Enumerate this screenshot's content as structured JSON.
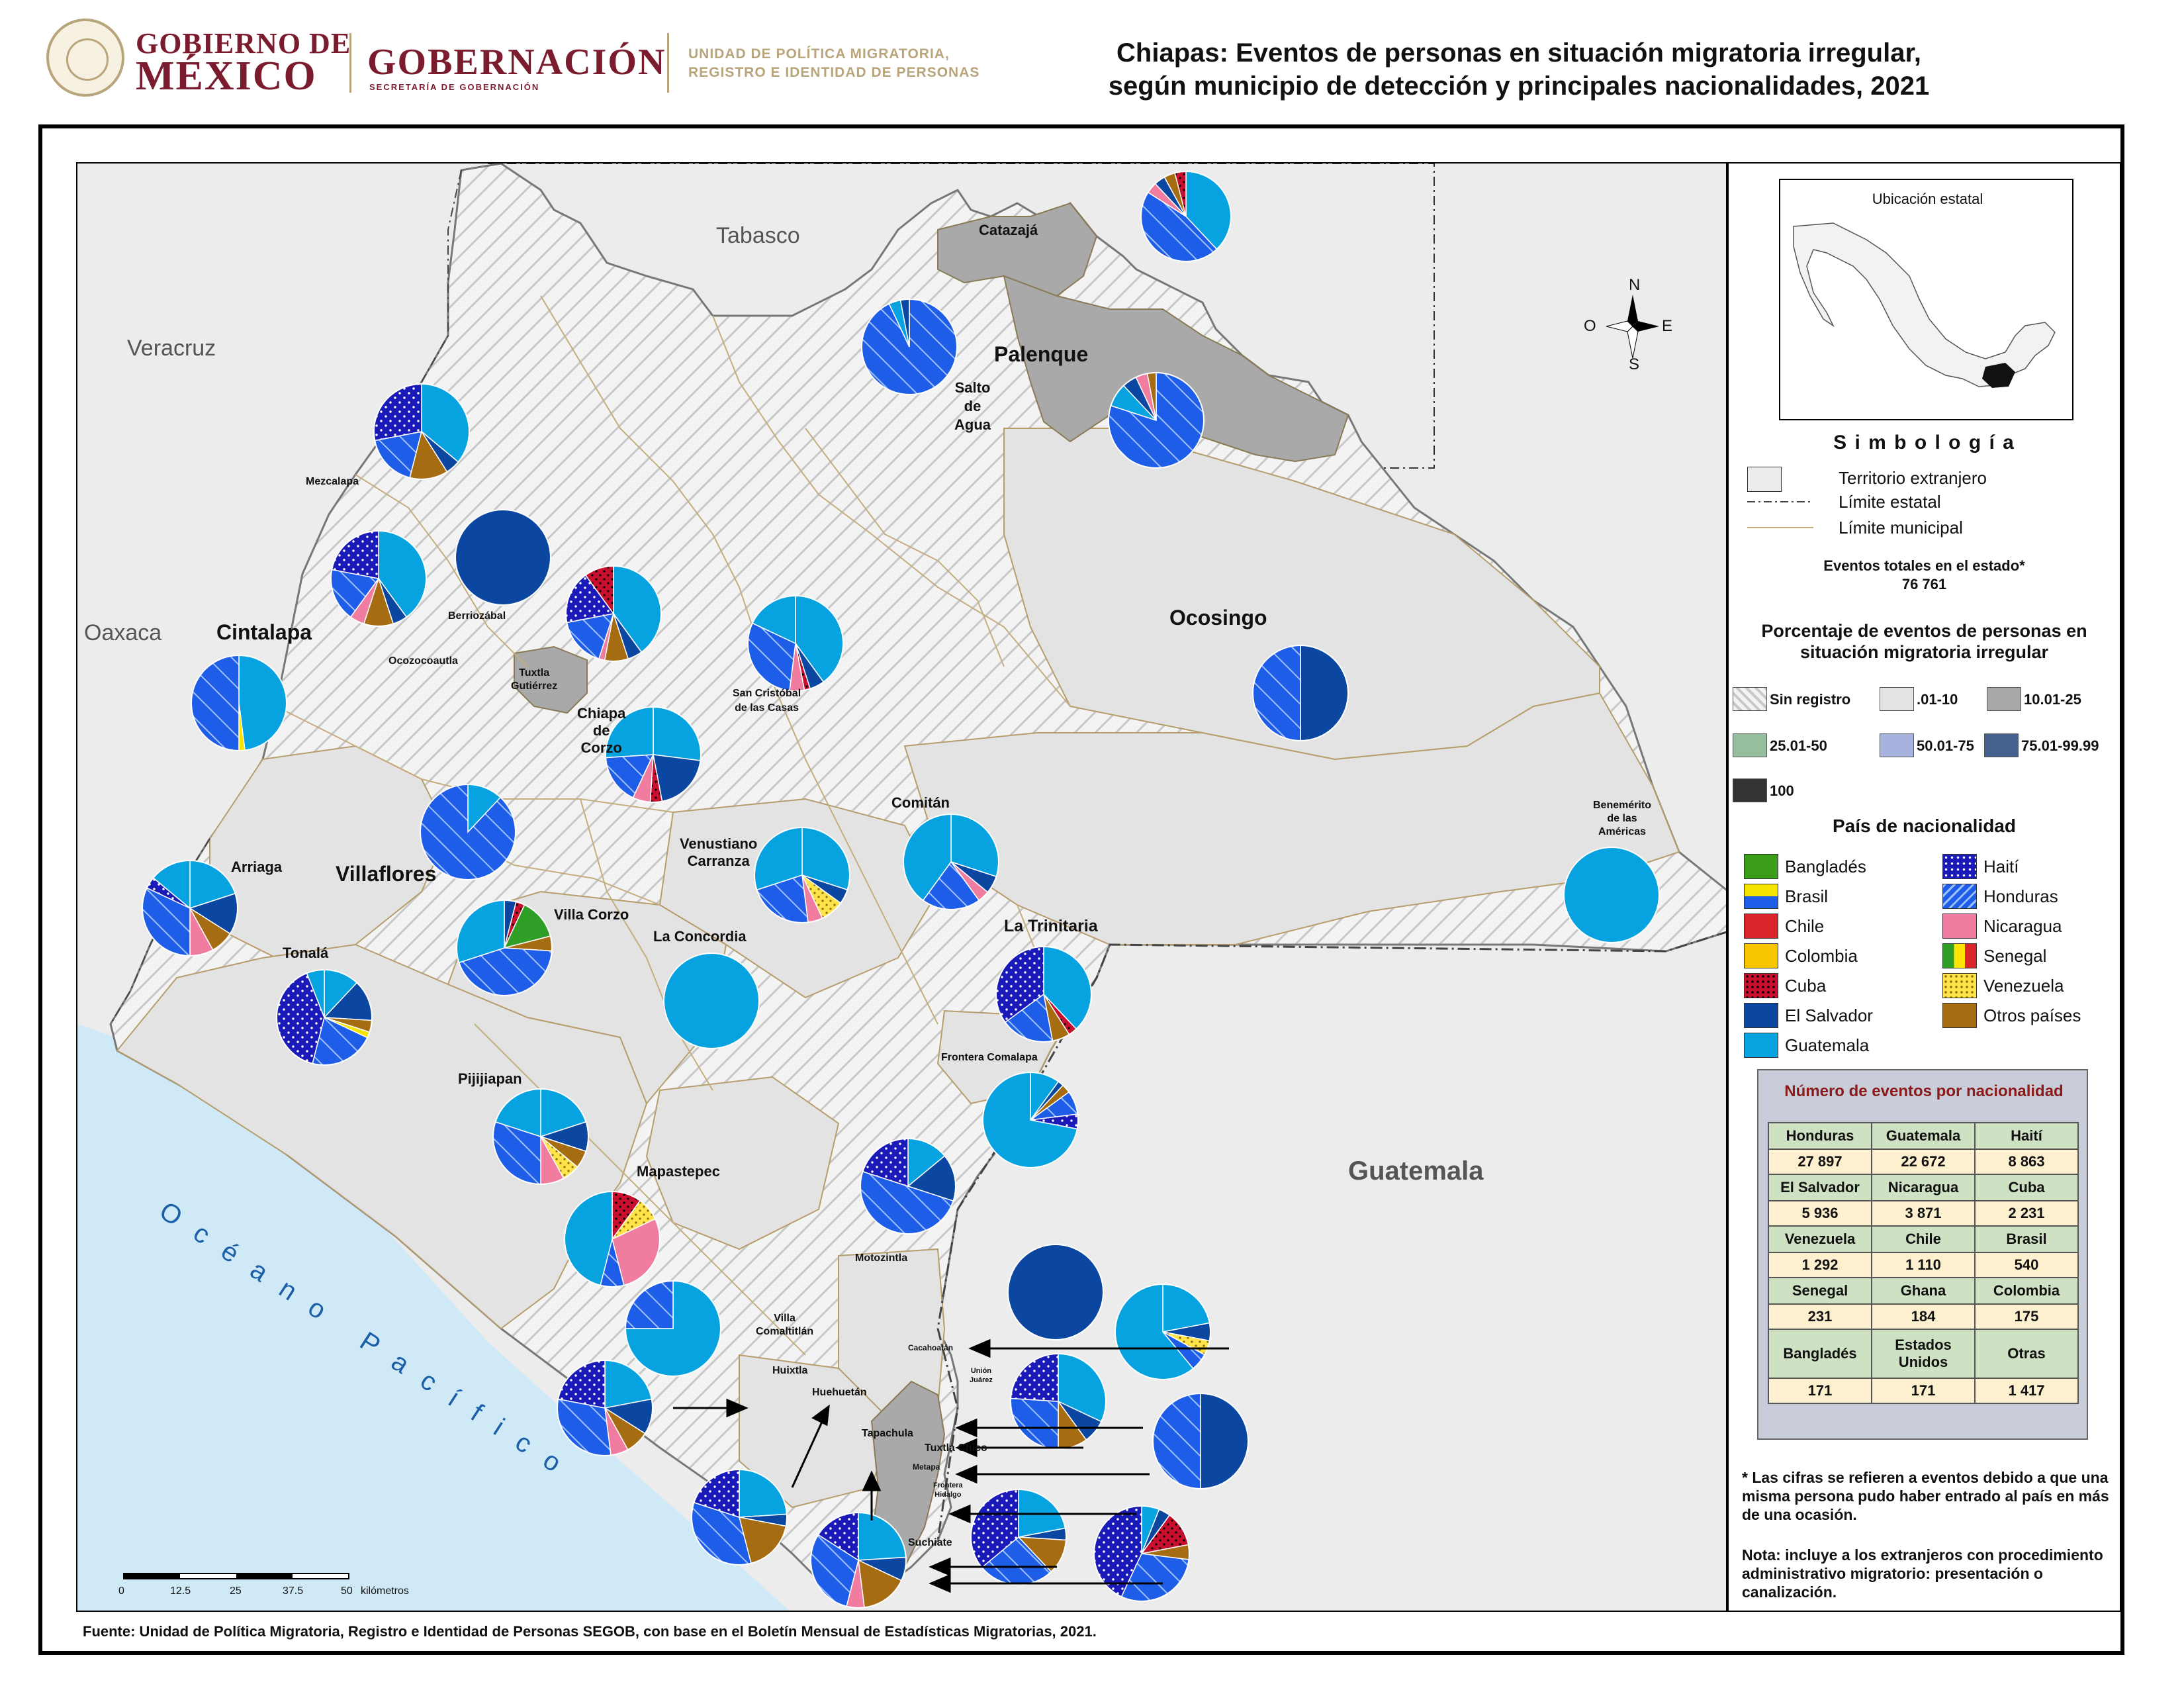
{
  "header": {
    "gob_line1": "GOBIERNO DE",
    "gob_line2": "MÉXICO",
    "gobernacion": "GOBERNACIÓN",
    "secretaria": "SECRETARÍA DE GOBERNACIÓN",
    "unidad_line1": "UNIDAD DE POLÍTICA MIGRATORIA,",
    "unidad_line2": "REGISTRO E IDENTIDAD DE PERSONAS",
    "title_line1": "Chiapas: Eventos de personas en situación migratoria irregular,",
    "title_line2": "según municipio de detección y principales nacionalidades, 2021"
  },
  "map": {
    "regions": {
      "tabasco": "Tabasco",
      "veracruz": "Veracruz",
      "oaxaca": "Oaxaca",
      "guatemala": "Guatemala",
      "ocean": "Océano Pacífico"
    },
    "municipalities": {
      "catazaja": "Catazajá",
      "palenque": "Palenque",
      "salto_line1": "Salto",
      "salto_line2": "de",
      "salto_line3": "Agua",
      "mezcalapa": "Mezcalapa",
      "berriozabal": "Berriozábal",
      "ocozocoautla": "Ocozocoautla",
      "cintalapa": "Cintalapa",
      "tuxtla_line1": "Tuxtla",
      "tuxtla_line2": "Gutiérrez",
      "chiapa_line1": "Chiapa",
      "chiapa_line2": "de",
      "chiapa_line3": "Corzo",
      "san_cristobal_line1": "San Cristóbal",
      "san_cristobal_line2": "de las Casas",
      "ocosingo": "Ocosingo",
      "comitan": "Comitán",
      "venustiano_line1": "Venustiano",
      "venustiano_line2": "Carranza",
      "benemerito_line1": "Benemérito",
      "benemerito_line2": "de las",
      "benemerito_line3": "Américas",
      "arriaga": "Arriaga",
      "villaflores": "Villaflores",
      "villa_corzo": "Villa Corzo",
      "la_concordia": "La Concordia",
      "la_trinitaria": "La Trinitaria",
      "tonala": "Tonalá",
      "pijijiapan": "Pijijiapan",
      "frontera_comalapa": "Frontera Comalapa",
      "mapastepec": "Mapastepec",
      "motozintla": "Motozintla",
      "villa_comaltitlan_line1": "Villa",
      "villa_comaltitlan_line2": "Comaltitlán",
      "huixtla": "Huixtla",
      "huehuetan": "Huehuetán",
      "cacahoatan": "Cacahoatán",
      "union_juarez_line1": "Unión",
      "union_juarez_line2": "Juárez",
      "tapachula": "Tapachula",
      "tuxtla_chico": "Tuxtla Chico",
      "metapa": "Metapa",
      "frontera_hidalgo_line1": "Frontera",
      "frontera_hidalgo_line2": "Hidalgo",
      "suchiate": "Suchiate"
    },
    "compass": {
      "n": "N",
      "s": "S",
      "e": "E",
      "o": "O"
    },
    "scale": {
      "ticks": [
        "0",
        "12.5",
        "25",
        "37.5",
        "50"
      ],
      "unit": "kilómetros"
    },
    "pie_slices": {
      "catazaja": [
        [
          "Guatemala",
          0.38
        ],
        [
          "Honduras",
          0.46
        ],
        [
          "Nicaragua",
          0.04
        ],
        [
          "El Salvador",
          0.04
        ],
        [
          "Otros países",
          0.04
        ],
        [
          "Cuba",
          0.04
        ]
      ],
      "salto": [
        [
          "Honduras",
          0.93
        ],
        [
          "Guatemala",
          0.04
        ],
        [
          "El Salvador",
          0.03
        ]
      ],
      "palenque": [
        [
          "Honduras",
          0.8
        ],
        [
          "Guatemala",
          0.08
        ],
        [
          "El Salvador",
          0.05
        ],
        [
          "Nicaragua",
          0.04
        ],
        [
          "Otros países",
          0.03
        ]
      ],
      "mezcalapa": [
        [
          "Guatemala",
          0.36
        ],
        [
          "El Salvador",
          0.05
        ],
        [
          "Otros países",
          0.13
        ],
        [
          "Honduras",
          0.18
        ],
        [
          "Haití",
          0.28
        ]
      ],
      "berriozabal": [
        [
          "El Salvador",
          1.0
        ]
      ],
      "cintalapa_mun": [
        [
          "Guatemala",
          0.4
        ],
        [
          "El Salvador",
          0.05
        ],
        [
          "Otros países",
          0.1
        ],
        [
          "Nicaragua",
          0.05
        ],
        [
          "Honduras",
          0.18
        ],
        [
          "Haití",
          0.22
        ]
      ],
      "ocozocoautla": [
        [
          "Guatemala",
          0.4
        ],
        [
          "El Salvador",
          0.05
        ],
        [
          "Otros países",
          0.08
        ],
        [
          "Nicaragua",
          0.02
        ],
        [
          "Honduras",
          0.17
        ],
        [
          "Haití",
          0.18
        ],
        [
          "Cuba",
          0.1
        ]
      ],
      "cintalapa": [
        [
          "Guatemala",
          0.48
        ],
        [
          "Brasil",
          0.02
        ],
        [
          "Honduras",
          0.5
        ]
      ],
      "san_cristobal": [
        [
          "Guatemala",
          0.4
        ],
        [
          "El Salvador",
          0.05
        ],
        [
          "Cuba",
          0.02
        ],
        [
          "Nicaragua",
          0.05
        ],
        [
          "Honduras",
          0.3
        ],
        [
          "Guatemala",
          0.18
        ]
      ],
      "chiapa": [
        [
          "Guatemala",
          0.27
        ],
        [
          "El Salvador",
          0.2
        ],
        [
          "Cuba",
          0.04
        ],
        [
          "Nicaragua",
          0.06
        ],
        [
          "Honduras",
          0.17
        ],
        [
          "Guatemala",
          0.26
        ]
      ],
      "ocosingo": [
        [
          "El Salvador",
          0.5
        ],
        [
          "Honduras",
          0.5
        ]
      ],
      "villaflores": [
        [
          "Guatemala",
          0.12
        ],
        [
          "Honduras",
          0.88
        ]
      ],
      "venustiano": [
        [
          "Guatemala",
          0.3
        ],
        [
          "El Salvador",
          0.05
        ],
        [
          "Venezuela",
          0.08
        ],
        [
          "Nicaragua",
          0.05
        ],
        [
          "Honduras",
          0.22
        ],
        [
          "Guatemala",
          0.3
        ]
      ],
      "comitan": [
        [
          "Guatemala",
          0.3
        ],
        [
          "El Salvador",
          0.06
        ],
        [
          "Nicaragua",
          0.04
        ],
        [
          "Honduras",
          0.2
        ],
        [
          "Guatemala",
          0.4
        ]
      ],
      "benemerito": [
        [
          "Guatemala",
          1.0
        ]
      ],
      "arriaga": [
        [
          "Guatemala",
          0.2
        ],
        [
          "El Salvador",
          0.14
        ],
        [
          "Otros países",
          0.08
        ],
        [
          "Nicaragua",
          0.08
        ],
        [
          "Honduras",
          0.32
        ],
        [
          "Haití",
          0.04
        ],
        [
          "Guatemala",
          0.14
        ]
      ],
      "villa_corzo": [
        [
          "El Salvador",
          0.04
        ],
        [
          "Cuba",
          0.03
        ],
        [
          "Senegal",
          0.14
        ],
        [
          "Otros países",
          0.05
        ],
        [
          "Honduras",
          0.44
        ],
        [
          "Guatemala",
          0.3
        ]
      ],
      "la_concordia": [
        [
          "Guatemala",
          1.0
        ]
      ],
      "la_trinitaria": [
        [
          "Guatemala",
          0.38
        ],
        [
          "Cuba",
          0.03
        ],
        [
          "Otros países",
          0.06
        ],
        [
          "Honduras",
          0.18
        ],
        [
          "Haití",
          0.35
        ]
      ],
      "tonala": [
        [
          "Guatemala",
          0.12
        ],
        [
          "El Salvador",
          0.14
        ],
        [
          "Otros países",
          0.04
        ],
        [
          "Brasil",
          0.02
        ],
        [
          "Honduras",
          0.22
        ],
        [
          "Haití",
          0.4
        ],
        [
          "Guatemala",
          0.06
        ]
      ],
      "frontera_comalapa": [
        [
          "Guatemala",
          0.1
        ],
        [
          "El Salvador",
          0.02
        ],
        [
          "Otros países",
          0.03
        ],
        [
          "Honduras",
          0.08
        ],
        [
          "Haití",
          0.05
        ],
        [
          "Guatemala",
          0.72
        ]
      ],
      "pijijiapan": [
        [
          "Guatemala",
          0.2
        ],
        [
          "El Salvador",
          0.1
        ],
        [
          "Otros países",
          0.06
        ],
        [
          "Venezuela",
          0.06
        ],
        [
          "Nicaragua",
          0.08
        ],
        [
          "Honduras",
          0.3
        ],
        [
          "Guatemala",
          0.2
        ]
      ],
      "mapastepec": [
        [
          "Cuba",
          0.1
        ],
        [
          "Venezuela",
          0.08
        ],
        [
          "Nicaragua",
          0.28
        ],
        [
          "Honduras",
          0.08
        ],
        [
          "Guatemala",
          0.46
        ]
      ],
      "motozintla": [
        [
          "Guatemala",
          0.14
        ],
        [
          "El Salvador",
          0.16
        ],
        [
          "Honduras",
          0.5
        ],
        [
          "Haití",
          0.2
        ]
      ],
      "villa_comaltitlan": [
        [
          "Guatemala",
          0.75
        ],
        [
          "Honduras",
          0.25
        ]
      ],
      "huixtla": [
        [
          "Guatemala",
          0.22
        ],
        [
          "El Salvador",
          0.12
        ],
        [
          "Otros países",
          0.08
        ],
        [
          "Nicaragua",
          0.06
        ],
        [
          "Honduras",
          0.3
        ],
        [
          "Haití",
          0.22
        ]
      ],
      "cacahoatan": [
        [
          "El Salvador",
          1.0
        ]
      ],
      "union_juarez": [
        [
          "Guatemala",
          0.22
        ],
        [
          "El Salvador",
          0.06
        ],
        [
          "Venezuela",
          0.05
        ],
        [
          "Honduras",
          0.06
        ],
        [
          "Guatemala",
          0.61
        ]
      ],
      "huehuetan": [
        [
          "Guatemala",
          0.32
        ],
        [
          "El Salvador",
          0.08
        ],
        [
          "Otros países",
          0.1
        ],
        [
          "Honduras",
          0.26
        ],
        [
          "Haití",
          0.24
        ]
      ],
      "tuxtla_chico": [
        [
          "El Salvador",
          0.5
        ],
        [
          "Honduras",
          0.5
        ]
      ],
      "tapachula_w": [
        [
          "Guatemala",
          0.22
        ],
        [
          "El Salvador",
          0.04
        ],
        [
          "Otros países",
          0.12
        ],
        [
          "Honduras",
          0.26
        ],
        [
          "Haití",
          0.36
        ]
      ],
      "tapachula_s": [
        [
          "Guatemala",
          0.24
        ],
        [
          "El Salvador",
          0.04
        ],
        [
          "Otros países",
          0.18
        ],
        [
          "Honduras",
          0.34
        ],
        [
          "Haití",
          0.2
        ]
      ],
      "frontera_hidalgo": [
        [
          "Guatemala",
          0.06
        ],
        [
          "El Salvador",
          0.04
        ],
        [
          "Cuba",
          0.12
        ],
        [
          "Otros países",
          0.05
        ],
        [
          "Honduras",
          0.3
        ],
        [
          "Haití",
          0.43
        ]
      ],
      "suchiate": [
        [
          "Guatemala",
          0.24
        ],
        [
          "El Salvador",
          0.08
        ],
        [
          "Otros países",
          0.16
        ],
        [
          "Nicaragua",
          0.06
        ],
        [
          "Honduras",
          0.3
        ],
        [
          "Haití",
          0.16
        ]
      ]
    }
  },
  "legend": {
    "inset_title": "Ubicación estatal",
    "simbologia": "S i m b o l o g í a",
    "symbols": [
      "Territorio extranjero",
      "Límite estatal",
      "Límite municipal"
    ],
    "total_label": "Eventos totales en el estado*",
    "total_value": "76 761",
    "pct_title_line1": "Porcentaje de eventos de personas en",
    "pct_title_line2": "situación migratoria irregular",
    "ranges": [
      "Sin registro",
      ".01-10",
      "10.01-25",
      "25.01-50",
      "50.01-75",
      "75.01-99.99",
      "100"
    ],
    "nat_title": "País de nacionalidad",
    "nationalities_left": [
      "Bangladés",
      "Brasil",
      "Chile",
      "Colombia",
      "Cuba",
      "El Salvador",
      "Guatemala"
    ],
    "nationalities_right": [
      "Haití",
      "Honduras",
      "Nicaragua",
      "Senegal",
      "Venezuela",
      "Otros países"
    ]
  },
  "counts": {
    "title": "Número de eventos por nacionalidad",
    "rows": [
      {
        "names": [
          "Honduras",
          "Guatemala",
          "Haití"
        ],
        "values": [
          "27 897",
          "22 672",
          "8 863"
        ]
      },
      {
        "names": [
          "El Salvador",
          "Nicaragua",
          "Cuba"
        ],
        "values": [
          "5 936",
          "3 871",
          "2 231"
        ]
      },
      {
        "names": [
          "Venezuela",
          "Chile",
          "Brasil"
        ],
        "values": [
          "1 292",
          "1 110",
          "540"
        ]
      },
      {
        "names": [
          "Senegal",
          "Ghana",
          "Colombia"
        ],
        "values": [
          "231",
          "184",
          "175"
        ]
      },
      {
        "names": [
          "Bangladés",
          "Estados Unidos",
          "Otras"
        ],
        "values": [
          "171",
          "171",
          "1 417"
        ]
      }
    ]
  },
  "notes": {
    "note1": "* Las cifras se refieren a eventos debido a que una misma persona pudo haber entrado al país en más de una ocasión.",
    "note2": "Nota: incluye a los extranjeros con procedimiento administrativo migratorio: presentación o canalización."
  },
  "source": "Fuente: Unidad de Política Migratoria, Registro e Identidad de Personas SEGOB, con base en el Boletín Mensual de Estadísticas Migratorias, 2021.",
  "colors": {
    "Bangladés": "#3a9e1a",
    "Brasil": "#f5e400",
    "Chile": "#d9262c",
    "Colombia": "#f7c600",
    "Cuba": "#c8102e",
    "El Salvador": "#0b47a1",
    "Guatemala": "#07a3e0",
    "Haití": "#1a1ab8",
    "Honduras": "#1e5de8",
    "Nicaragua": "#f07ca0",
    "Senegal": "#2e9e27",
    "Venezuela": "#ffe34a",
    "Otros países": "#a66c12"
  }
}
